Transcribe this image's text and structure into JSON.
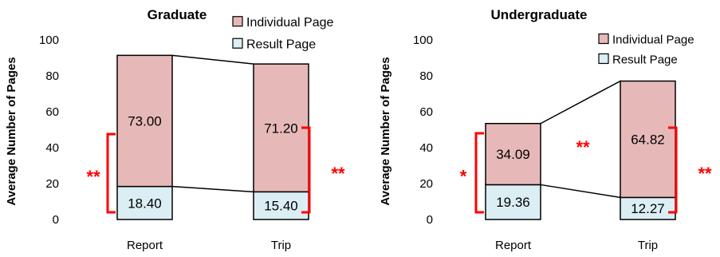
{
  "colors": {
    "individual": "#e6b9b8",
    "result": "#dbeef4",
    "significance": "#ff0000",
    "stroke": "#000000"
  },
  "chart_data": [
    {
      "type": "bar",
      "stacked": true,
      "title": "Graduate",
      "ylabel": "Average Number  of Pages",
      "xlabel": "",
      "ylim": [
        0,
        100
      ],
      "yticks": [
        0,
        20,
        40,
        60,
        80,
        100
      ],
      "categories": [
        "Report",
        "Trip"
      ],
      "series": [
        {
          "name": "Result Page",
          "values": [
            18.4,
            15.4
          ],
          "labels": [
            "18.40",
            "15.40"
          ]
        },
        {
          "name": "Individual Page",
          "values": [
            73.0,
            71.2
          ],
          "labels": [
            "73.00",
            "71.20"
          ]
        }
      ],
      "legend": [
        "Individual Page",
        "Result Page"
      ],
      "legend_position": "top-right",
      "grid": false,
      "annotations": [
        {
          "category": "Report",
          "side": "left",
          "text": "**"
        },
        {
          "category": "Trip",
          "side": "right",
          "text": "**"
        }
      ]
    },
    {
      "type": "bar",
      "stacked": true,
      "title": "Undergraduate",
      "ylabel": "Average Number  of Pages",
      "xlabel": "",
      "ylim": [
        0,
        100
      ],
      "yticks": [
        0,
        20,
        40,
        60,
        80,
        100
      ],
      "categories": [
        "Report",
        "Trip"
      ],
      "series": [
        {
          "name": "Result Page",
          "values": [
            19.36,
            12.27
          ],
          "labels": [
            "19.36",
            "12.27"
          ]
        },
        {
          "name": "Individual Page",
          "values": [
            34.09,
            64.82
          ],
          "labels": [
            "34.09",
            "64.82"
          ]
        }
      ],
      "legend": [
        "Individual Page",
        "Result Page"
      ],
      "legend_position": "top-right",
      "grid": false,
      "annotations": [
        {
          "category": "Report",
          "side": "left",
          "text": "*"
        },
        {
          "category": "between",
          "side": "middle",
          "text": "**"
        },
        {
          "category": "Trip",
          "side": "right",
          "text": "**"
        }
      ]
    }
  ]
}
